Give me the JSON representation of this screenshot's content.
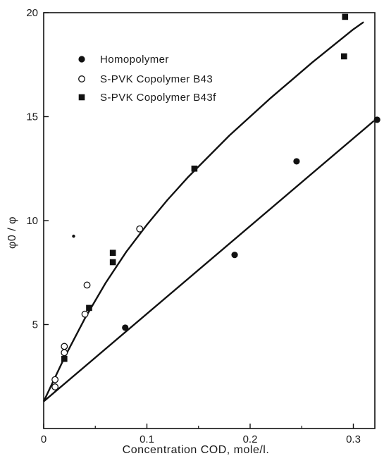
{
  "chart_data": {
    "type": "scatter",
    "xlabel": "Concentration COD, mole/l.",
    "ylabel": "φ0 / φ",
    "xlim": [
      0,
      0.33
    ],
    "ylim": [
      0,
      20
    ],
    "x_ticks": [
      0,
      0.1,
      0.2,
      0.3
    ],
    "x_tick_labels": [
      "0",
      "0.1",
      "0.2",
      "0.3"
    ],
    "y_ticks": [
      5,
      10,
      15,
      20
    ],
    "y_tick_labels": [
      "5",
      "10",
      "15",
      "20"
    ],
    "grid": false,
    "legend_position": "top-left",
    "series": [
      {
        "name": "Homopolymer",
        "marker": "filled-circle",
        "color": "#111111",
        "x": [
          0.079,
          0.185,
          0.245,
          0.323
        ],
        "y": [
          4.85,
          8.35,
          12.85,
          14.85
        ]
      },
      {
        "name": "S-PVK Copolymer B43",
        "marker": "open-circle",
        "color": "#111111",
        "x": [
          0.011,
          0.011,
          0.02,
          0.02,
          0.04,
          0.042,
          0.093
        ],
        "y": [
          2.0,
          2.35,
          3.65,
          3.95,
          5.5,
          6.9,
          9.6
        ]
      },
      {
        "name": "S-PVK Copolymer B43f",
        "marker": "filled-square",
        "color": "#111111",
        "x": [
          0.02,
          0.044,
          0.067,
          0.067,
          0.146,
          0.291,
          0.292
        ],
        "y": [
          3.35,
          5.8,
          8.0,
          8.45,
          12.5,
          17.9,
          19.8
        ]
      }
    ],
    "fit_lines": [
      {
        "for": "S-PVK Copolymer B43 / B43f",
        "x": [
          0,
          0.02,
          0.04,
          0.06,
          0.08,
          0.1,
          0.12,
          0.14,
          0.16,
          0.18,
          0.2,
          0.22,
          0.24,
          0.26,
          0.28,
          0.3,
          0.31
        ],
        "y": [
          1.3,
          3.4,
          5.3,
          7.0,
          8.5,
          9.8,
          11.0,
          12.1,
          13.1,
          14.1,
          15.0,
          15.9,
          16.75,
          17.6,
          18.4,
          19.2,
          19.55
        ]
      },
      {
        "for": "Homopolymer",
        "x": [
          0,
          0.32
        ],
        "y": [
          1.3,
          14.8
        ]
      }
    ],
    "stray_marks": [
      {
        "x": 0.029,
        "y": 9.25
      }
    ]
  }
}
